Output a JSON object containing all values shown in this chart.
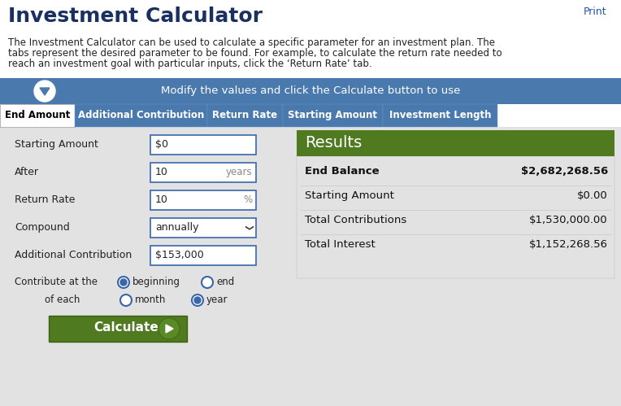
{
  "title": "Investment Calculator",
  "desc_lines": [
    "The Investment Calculator can be used to calculate a specific parameter for an investment plan. The",
    "tabs represent the desired parameter to be found. For example, to calculate the return rate needed to",
    "reach an investment goal with particular inputs, click the ‘Return Rate’ tab."
  ],
  "banner_text": "Modify the values and click the Calculate button to use",
  "banner_bg": "#4a7aad",
  "tabs": [
    "End Amount",
    "Additional Contribution",
    "Return Rate",
    "Starting Amount",
    "Investment Length"
  ],
  "tab_bg": "#4a7aad",
  "tab_fg": "#ffffff",
  "tab_active_bg": "#ffffff",
  "tab_active_fg": "#000000",
  "form_rows": [
    {
      "label": "Starting Amount",
      "value": "$0",
      "unit": "",
      "type": "input"
    },
    {
      "label": "After",
      "value": "10",
      "unit": "years",
      "type": "input"
    },
    {
      "label": "Return Rate",
      "value": "10",
      "unit": "%",
      "type": "input"
    },
    {
      "label": "Compound",
      "value": "annually",
      "unit": "",
      "type": "select"
    },
    {
      "label": "Additional Contribution",
      "value": "$153,000",
      "unit": "",
      "type": "input"
    }
  ],
  "results_header_bg": "#4f7a20",
  "results_area_bg": "#e8e8e8",
  "results_title": "Results",
  "result_rows": [
    {
      "label": "End Balance",
      "value": "$2,682,268.56",
      "bold": true
    },
    {
      "label": "Starting Amount",
      "value": "$0.00",
      "bold": false
    },
    {
      "label": "Total Contributions",
      "value": "$1,530,000.00",
      "bold": false
    },
    {
      "label": "Total Interest",
      "value": "$1,152,268.56",
      "bold": false
    }
  ],
  "btn_text": "Calculate",
  "btn_bg": "#4f7a20",
  "page_bg": "#ffffff",
  "content_bg": "#e2e2e2",
  "input_border": "#3a66aa",
  "print_color": "#2255aa"
}
